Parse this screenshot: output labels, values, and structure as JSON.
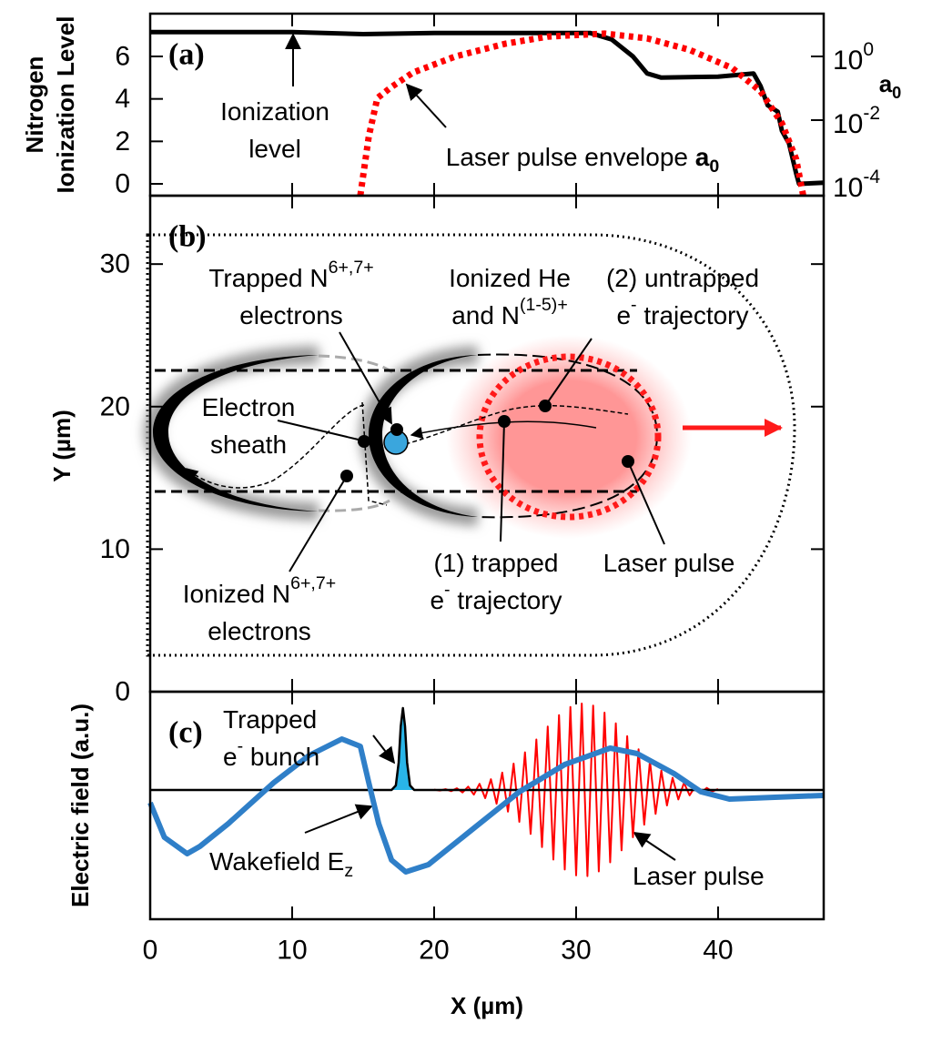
{
  "chart_data": [
    {
      "type": "line",
      "label": "(a)",
      "ylabel": [
        "Nitrogen",
        "Ionization Level"
      ],
      "y2label": [
        {
          "text": "a",
          "style": "bold"
        },
        {
          "text": "0",
          "style": "sub"
        }
      ],
      "xlim": [
        0,
        47.44
      ],
      "ylim": [
        -0.557,
        8.014
      ],
      "yticks": [
        0,
        2,
        4,
        6
      ],
      "y2lim": [
        4.25e-05,
        22
      ],
      "y2scale": "log",
      "y2ticks": [
        {
          "value": 1,
          "label": "10",
          "sup": "0"
        },
        {
          "value": 0.01,
          "label": "10",
          "sup": "-2"
        },
        {
          "value": 0.0001,
          "label": "10",
          "sup": "-4"
        }
      ],
      "series": [
        {
          "color": "#000000",
          "width": 5,
          "x": [
            0,
            10,
            15,
            20,
            30,
            31,
            32.5,
            34,
            35,
            36,
            40,
            42.5,
            43,
            43.5,
            44.2,
            44.5,
            45,
            45.5,
            45.7,
            47.44
          ],
          "values": [
            7.15,
            7.15,
            7.05,
            7.1,
            7.1,
            7.1,
            6.8,
            6.0,
            5.2,
            5.0,
            5.05,
            5.2,
            4.6,
            3.7,
            3.4,
            2.5,
            1.9,
            0.5,
            0,
            0.05
          ]
        },
        {
          "color": "#ff0000",
          "width": 7,
          "dash": "dotted",
          "axis": "y2",
          "x": [
            14.8,
            15.4,
            16,
            17,
            18.5,
            21.5,
            25,
            28,
            32,
            35,
            38,
            41,
            43,
            44.5,
            45.5,
            46
          ],
          "values": [
            4.27e-05,
            0.0031,
            0.049,
            0.11,
            0.31,
            1,
            2.5,
            4.2,
            5.2,
            3.7,
            1.6,
            0.43,
            0.08,
            0.008,
            0.0006,
            4.27e-05
          ]
        }
      ],
      "annotations": [
        {
          "lines": [
            [
              "Ionization"
            ],
            [
              "level"
            ]
          ]
        },
        {
          "lines": [
            [
              "Laser pulse envelope ",
              {
                "text": "a",
                "style": "bold"
              },
              {
                "text": "0",
                "style": "bold-sub"
              }
            ]
          ]
        }
      ]
    },
    {
      "type": "diagram",
      "label": "(b)",
      "ylabel": [
        "Y (µm)"
      ],
      "xlim": [
        0,
        47.44
      ],
      "ylim": [
        0,
        34.8
      ],
      "yticks": [
        0,
        10,
        20,
        30
      ],
      "series": [],
      "annotations": [
        {
          "lines": [
            [
              "Trapped N",
              {
                "text": "6+,7+",
                "style": "sup"
              }
            ],
            [
              "electrons"
            ]
          ]
        },
        {
          "lines": [
            [
              "Ionized He"
            ],
            [
              "and N",
              {
                "text": "(1-5)+",
                "style": "sup"
              }
            ]
          ]
        },
        {
          "lines": [
            [
              "(2) untrapped"
            ],
            [
              "e",
              {
                "text": "-",
                "style": "sup"
              },
              " trajectory"
            ]
          ]
        },
        {
          "lines": [
            [
              "Electron"
            ],
            [
              "sheath"
            ]
          ]
        },
        {
          "lines": [
            [
              "(1) trapped"
            ],
            [
              "e",
              {
                "text": "-",
                "style": "sup"
              },
              " trajectory"
            ]
          ]
        },
        {
          "lines": [
            [
              "Laser pulse"
            ]
          ]
        },
        {
          "lines": [
            [
              "Ionized N",
              {
                "text": "6+,7+",
                "style": "sup"
              }
            ],
            [
              "electrons"
            ]
          ]
        }
      ]
    },
    {
      "type": "line",
      "label": "(c)",
      "ylabel": [
        "Electric field (a.u.)"
      ],
      "xlabel": "X (µm)",
      "xlim": [
        0,
        47.44
      ],
      "ylim": [
        -1.42,
        1.08
      ],
      "xticks": [
        0,
        10,
        20,
        30,
        40
      ],
      "series": [
        {
          "color": "#ff0000",
          "width": 2,
          "x": [
            20,
            20.4,
            20.8,
            21.2,
            21.6,
            22,
            22.4,
            22.8,
            23.2,
            23.6,
            24,
            24.4,
            24.8,
            25.2,
            25.6,
            26,
            26.4,
            26.8,
            27.2,
            27.6,
            28,
            28.4,
            28.8,
            29.2,
            29.6,
            30,
            30.4,
            30.8,
            31.2,
            31.6,
            32,
            32.4,
            32.8,
            33.2,
            33.6,
            34,
            34.4,
            34.8,
            35.2,
            35.6,
            36,
            36.4,
            36.8,
            37.2,
            37.6,
            38,
            38.4,
            38.8,
            39.2,
            39.6,
            40
          ],
          "values": [
            0.004,
            -0.006,
            0.009,
            -0.013,
            0.019,
            -0.027,
            0.037,
            -0.051,
            0.068,
            -0.09,
            0.118,
            -0.151,
            0.191,
            -0.238,
            0.29,
            -0.35,
            0.414,
            -0.483,
            0.555,
            -0.627,
            0.697,
            -0.764,
            0.823,
            -0.874,
            0.913,
            -0.938,
            0.95,
            -0.946,
            0.927,
            -0.895,
            0.85,
            -0.795,
            0.732,
            -0.663,
            0.591,
            -0.519,
            0.448,
            -0.381,
            0.319,
            -0.263,
            0.213,
            -0.17,
            0.134,
            -0.104,
            0.079,
            -0.059,
            0.044,
            -0.031,
            0.023,
            -0.016,
            0.011
          ]
        },
        {
          "color": "#000000",
          "fill": "#29b5e8",
          "width": 2.5,
          "area": true,
          "x": [
            0,
            17,
            17.3,
            17.5,
            17.65,
            17.8,
            17.95,
            18.1,
            18.3,
            18.6,
            47.44
          ],
          "values": [
            0,
            0,
            0.05,
            0.3,
            0.7,
            0.9,
            0.7,
            0.3,
            0.05,
            0,
            0
          ]
        },
        {
          "color": "#2f7fc8",
          "width": 6,
          "x": [
            0,
            1,
            2.6,
            3.5,
            5.5,
            8.7,
            11.2,
            13.5,
            14.8,
            15.4,
            16.1,
            17,
            18,
            19.6,
            22.8,
            26,
            29.2,
            32.4,
            34.3,
            36.9,
            38.8,
            40.8,
            44,
            47.44
          ],
          "values": [
            -0.14,
            -0.52,
            -0.7,
            -0.62,
            -0.37,
            0.08,
            0.38,
            0.56,
            0.48,
            0.08,
            -0.37,
            -0.77,
            -0.9,
            -0.82,
            -0.42,
            -0.02,
            0.28,
            0.46,
            0.4,
            0.18,
            -0.02,
            -0.1,
            -0.08,
            -0.06
          ]
        }
      ],
      "annotations": [
        {
          "lines": [
            [
              "Trapped"
            ],
            [
              "e",
              {
                "text": "-",
                "style": "sup"
              },
              " bunch"
            ]
          ]
        },
        {
          "lines": [
            [
              "Wakefield E",
              {
                "text": "z",
                "style": "sub"
              }
            ]
          ]
        },
        {
          "lines": [
            [
              "Laser pulse"
            ]
          ]
        }
      ]
    }
  ]
}
